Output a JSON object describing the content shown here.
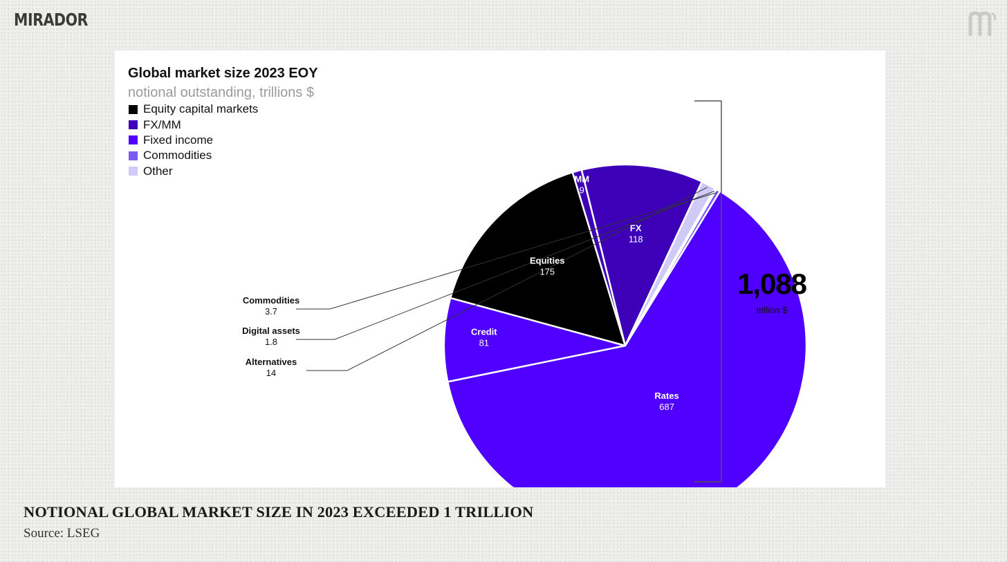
{
  "brand": {
    "name": "MIRADOR",
    "logo_icon": "mirador-m-logo-icon"
  },
  "chart_data": {
    "type": "pie",
    "title": "Global market size 2023 EOY",
    "subtitle": "notional outstanding, trillions $",
    "legend_position": "top-left",
    "legend": [
      {
        "label": "Equity capital markets",
        "color": "#000000"
      },
      {
        "label": "FX/MM",
        "color": "#3d00b8"
      },
      {
        "label": "Fixed income",
        "color": "#4f00ff"
      },
      {
        "label": "Commodities",
        "color": "#7b5cf2"
      },
      {
        "label": "Other",
        "color": "#cfcaf8"
      }
    ],
    "slices": [
      {
        "label": "Rates",
        "value": "687",
        "num": 687,
        "color": "#4f00ff",
        "label_color": "#ffffff",
        "labelpos": "inside"
      },
      {
        "label": "Credit",
        "value": "81",
        "num": 81,
        "color": "#4f00ff",
        "label_color": "#ffffff",
        "labelpos": "inside"
      },
      {
        "label": "Equities",
        "value": "175",
        "num": 175,
        "color": "#000000",
        "label_color": "#ffffff",
        "labelpos": "inside"
      },
      {
        "label": "MM",
        "value": "9",
        "num": 9,
        "color": "#3d00b8",
        "label_color": "#ffffff",
        "labelpos": "inside"
      },
      {
        "label": "FX",
        "value": "118",
        "num": 118,
        "color": "#3d00b8",
        "label_color": "#ffffff",
        "labelpos": "inside"
      },
      {
        "label": "Alternatives",
        "value": "14",
        "num": 14,
        "color": "#cfcaf8",
        "label_color": "#111111",
        "labelpos": "outside"
      },
      {
        "label": "Digital assets",
        "value": "1.8",
        "num": 1.8,
        "color": "#cfcaf8",
        "label_color": "#111111",
        "labelpos": "outside"
      },
      {
        "label": "Commodities",
        "value": "3.7",
        "num": 3.7,
        "color": "#7b5cf2",
        "label_color": "#111111",
        "labelpos": "outside"
      }
    ],
    "total": {
      "value": "1,088",
      "unit": "trillion $"
    }
  },
  "caption": {
    "title": "NOTIONAL GLOBAL MARKET SIZE IN 2023 EXCEEDED 1 TRILLION",
    "source": "Source: LSEG"
  }
}
